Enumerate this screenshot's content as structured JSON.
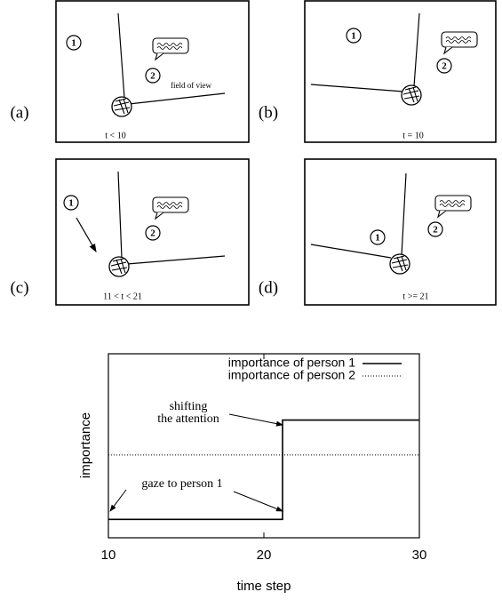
{
  "panels": [
    {
      "label": "(a)",
      "caption": "t < 10",
      "person_1": "1",
      "person_2": "2",
      "note": "field of view"
    },
    {
      "label": "(b)",
      "caption": "t = 10",
      "person_1": "1",
      "person_2": "2"
    },
    {
      "label": "(c)",
      "caption": "11 < t < 21",
      "person_1": "1",
      "person_2": "2"
    },
    {
      "label": "(d)",
      "caption": "t >= 21",
      "person_1": "1",
      "person_2": "2"
    }
  ],
  "chart_data": {
    "type": "line",
    "xlabel": "time step",
    "ylabel": "importance",
    "xlim": [
      10,
      30
    ],
    "ylim": [
      0,
      1
    ],
    "xticks": [
      10,
      20,
      30
    ],
    "legend": "top-right",
    "series": [
      {
        "name": "importance of person 1",
        "color": "#000000",
        "style": "solid",
        "x": [
          10,
          21.2,
          21.2,
          30
        ],
        "values": [
          0.1,
          0.1,
          0.64,
          0.64
        ]
      },
      {
        "name": "importance of person 2",
        "color": "#000000",
        "style": "dotted",
        "x": [
          10,
          30
        ],
        "values": [
          0.45,
          0.45
        ]
      }
    ],
    "annotations": [
      {
        "text": [
          "shifting",
          "the attention"
        ]
      },
      {
        "text": [
          "gaze to person 1"
        ]
      }
    ]
  }
}
